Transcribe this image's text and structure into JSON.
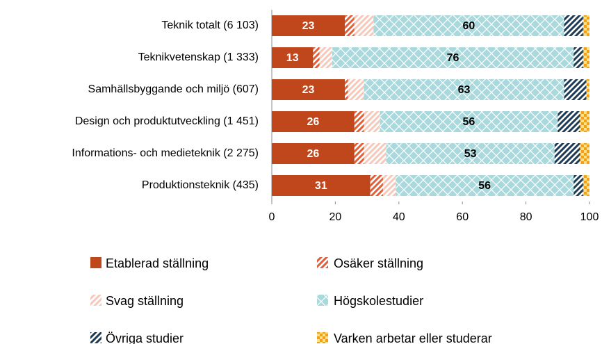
{
  "chart_data": {
    "type": "stacked_barh",
    "categories": [
      "Teknik totalt (6 103)",
      "Teknikvetenskap (1 333)",
      "Samhällsbyggande och miljö (607)",
      "Design och produktutveckling (1 451)",
      "Informations- och medieteknik (2 275)",
      "Produktionsteknik (435)"
    ],
    "series": [
      {
        "name": "Etablerad ställning",
        "color": "#c0461b",
        "pattern": "solid",
        "labels": true,
        "values": [
          23,
          13,
          23,
          26,
          26,
          31
        ]
      },
      {
        "name": "Osäker ställning",
        "color": "#e0603a",
        "pattern": "stripes",
        "labels": false,
        "values": [
          3,
          2,
          1,
          3,
          3,
          4
        ]
      },
      {
        "name": "Svag ställning",
        "color": "#f6c9bb",
        "pattern": "stripes",
        "labels": false,
        "values": [
          6,
          4,
          5,
          5,
          7,
          4
        ]
      },
      {
        "name": "Högskolestudier",
        "color": "#a9d9dc",
        "pattern": "cross",
        "labels": true,
        "values": [
          60,
          76,
          63,
          56,
          53,
          56
        ]
      },
      {
        "name": "Övriga studier",
        "color": "#1d3a57",
        "pattern": "stripes",
        "labels": false,
        "values": [
          6,
          3,
          7,
          7,
          8,
          3
        ]
      },
      {
        "name": "Varken arbetar eller studerar",
        "color": "#f2a116",
        "pattern": "checker",
        "labels": false,
        "values": [
          2,
          2,
          1,
          3,
          3,
          2
        ]
      }
    ],
    "xlim": [
      0,
      100
    ],
    "xticks": [
      0,
      20,
      40,
      60,
      80,
      100
    ],
    "legend": "bottom"
  }
}
